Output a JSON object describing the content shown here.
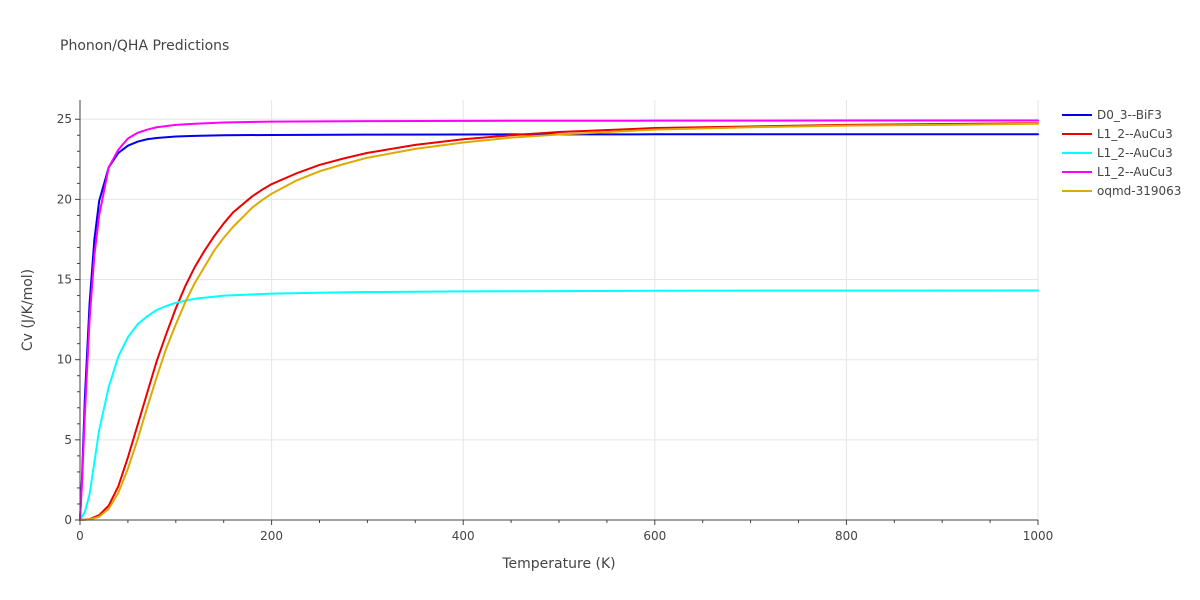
{
  "chart_data": {
    "type": "line",
    "title": "Phonon/QHA Predictions",
    "xlabel": "Temperature (K)",
    "ylabel": "Cv (J/K/mol)",
    "xlim": [
      0,
      1000
    ],
    "ylim": [
      0,
      26.2
    ],
    "xticks": [
      0,
      200,
      400,
      600,
      800,
      1000
    ],
    "yticks": [
      0,
      5,
      10,
      15,
      20,
      25
    ],
    "grid": true,
    "legend_position": "top-right",
    "series": [
      {
        "name": "D0_3--BiF3",
        "color": "#0000ee",
        "x": [
          0,
          2,
          5,
          10,
          15,
          20,
          30,
          40,
          50,
          60,
          70,
          80,
          100,
          120,
          150,
          200,
          300,
          400,
          600,
          800,
          1000
        ],
        "y": [
          0,
          2.5,
          7.5,
          13.5,
          17.5,
          19.9,
          22.0,
          22.9,
          23.35,
          23.6,
          23.75,
          23.83,
          23.92,
          23.96,
          24.0,
          24.02,
          24.04,
          24.05,
          24.06,
          24.06,
          24.06
        ]
      },
      {
        "name": "L1_2--AuCu3",
        "color": "#ee0000",
        "x": [
          0,
          10,
          20,
          30,
          40,
          50,
          60,
          70,
          80,
          90,
          100,
          110,
          120,
          130,
          140,
          150,
          160,
          170,
          180,
          190,
          200,
          225,
          250,
          275,
          300,
          350,
          400,
          450,
          500,
          600,
          700,
          800,
          900,
          1000
        ],
        "y": [
          0,
          0.05,
          0.3,
          0.9,
          2.1,
          3.9,
          5.9,
          7.9,
          9.9,
          11.6,
          13.2,
          14.6,
          15.8,
          16.8,
          17.7,
          18.5,
          19.2,
          19.7,
          20.2,
          20.6,
          20.95,
          21.6,
          22.15,
          22.55,
          22.9,
          23.4,
          23.75,
          24.0,
          24.2,
          24.45,
          24.55,
          24.65,
          24.7,
          24.75
        ]
      },
      {
        "name": "L1_2--AuCu3",
        "color": "#00ffff",
        "x": [
          0,
          5,
          10,
          15,
          20,
          30,
          40,
          50,
          60,
          70,
          80,
          90,
          100,
          120,
          150,
          200,
          250,
          300,
          400,
          500,
          600,
          800,
          1000
        ],
        "y": [
          0,
          0.5,
          1.6,
          3.6,
          5.6,
          8.3,
          10.2,
          11.4,
          12.2,
          12.7,
          13.1,
          13.35,
          13.55,
          13.8,
          14.0,
          14.12,
          14.18,
          14.22,
          14.26,
          14.28,
          14.3,
          14.31,
          14.32
        ]
      },
      {
        "name": "L1_2--AuCu3",
        "color": "#ff00ff",
        "x": [
          0,
          2,
          5,
          10,
          15,
          20,
          30,
          40,
          50,
          60,
          70,
          80,
          100,
          120,
          150,
          200,
          300,
          400,
          600,
          800,
          1000
        ],
        "y": [
          0,
          2.2,
          6.5,
          12.5,
          16.5,
          19.0,
          22.0,
          23.1,
          23.8,
          24.15,
          24.35,
          24.5,
          24.65,
          24.72,
          24.8,
          24.85,
          24.88,
          24.9,
          24.91,
          24.92,
          24.92
        ]
      },
      {
        "name": "oqmd-319063",
        "color": "#ddaa00",
        "x": [
          0,
          10,
          20,
          30,
          40,
          50,
          60,
          70,
          80,
          90,
          100,
          110,
          120,
          130,
          140,
          150,
          160,
          170,
          180,
          190,
          200,
          225,
          250,
          275,
          300,
          350,
          400,
          450,
          500,
          600,
          700,
          800,
          900,
          1000
        ],
        "y": [
          0,
          0.03,
          0.2,
          0.7,
          1.7,
          3.2,
          5.0,
          7.0,
          8.9,
          10.7,
          12.2,
          13.6,
          14.8,
          15.8,
          16.8,
          17.6,
          18.3,
          18.9,
          19.5,
          19.95,
          20.35,
          21.15,
          21.75,
          22.2,
          22.6,
          23.15,
          23.55,
          23.85,
          24.05,
          24.35,
          24.5,
          24.6,
          24.65,
          24.72
        ]
      }
    ]
  }
}
